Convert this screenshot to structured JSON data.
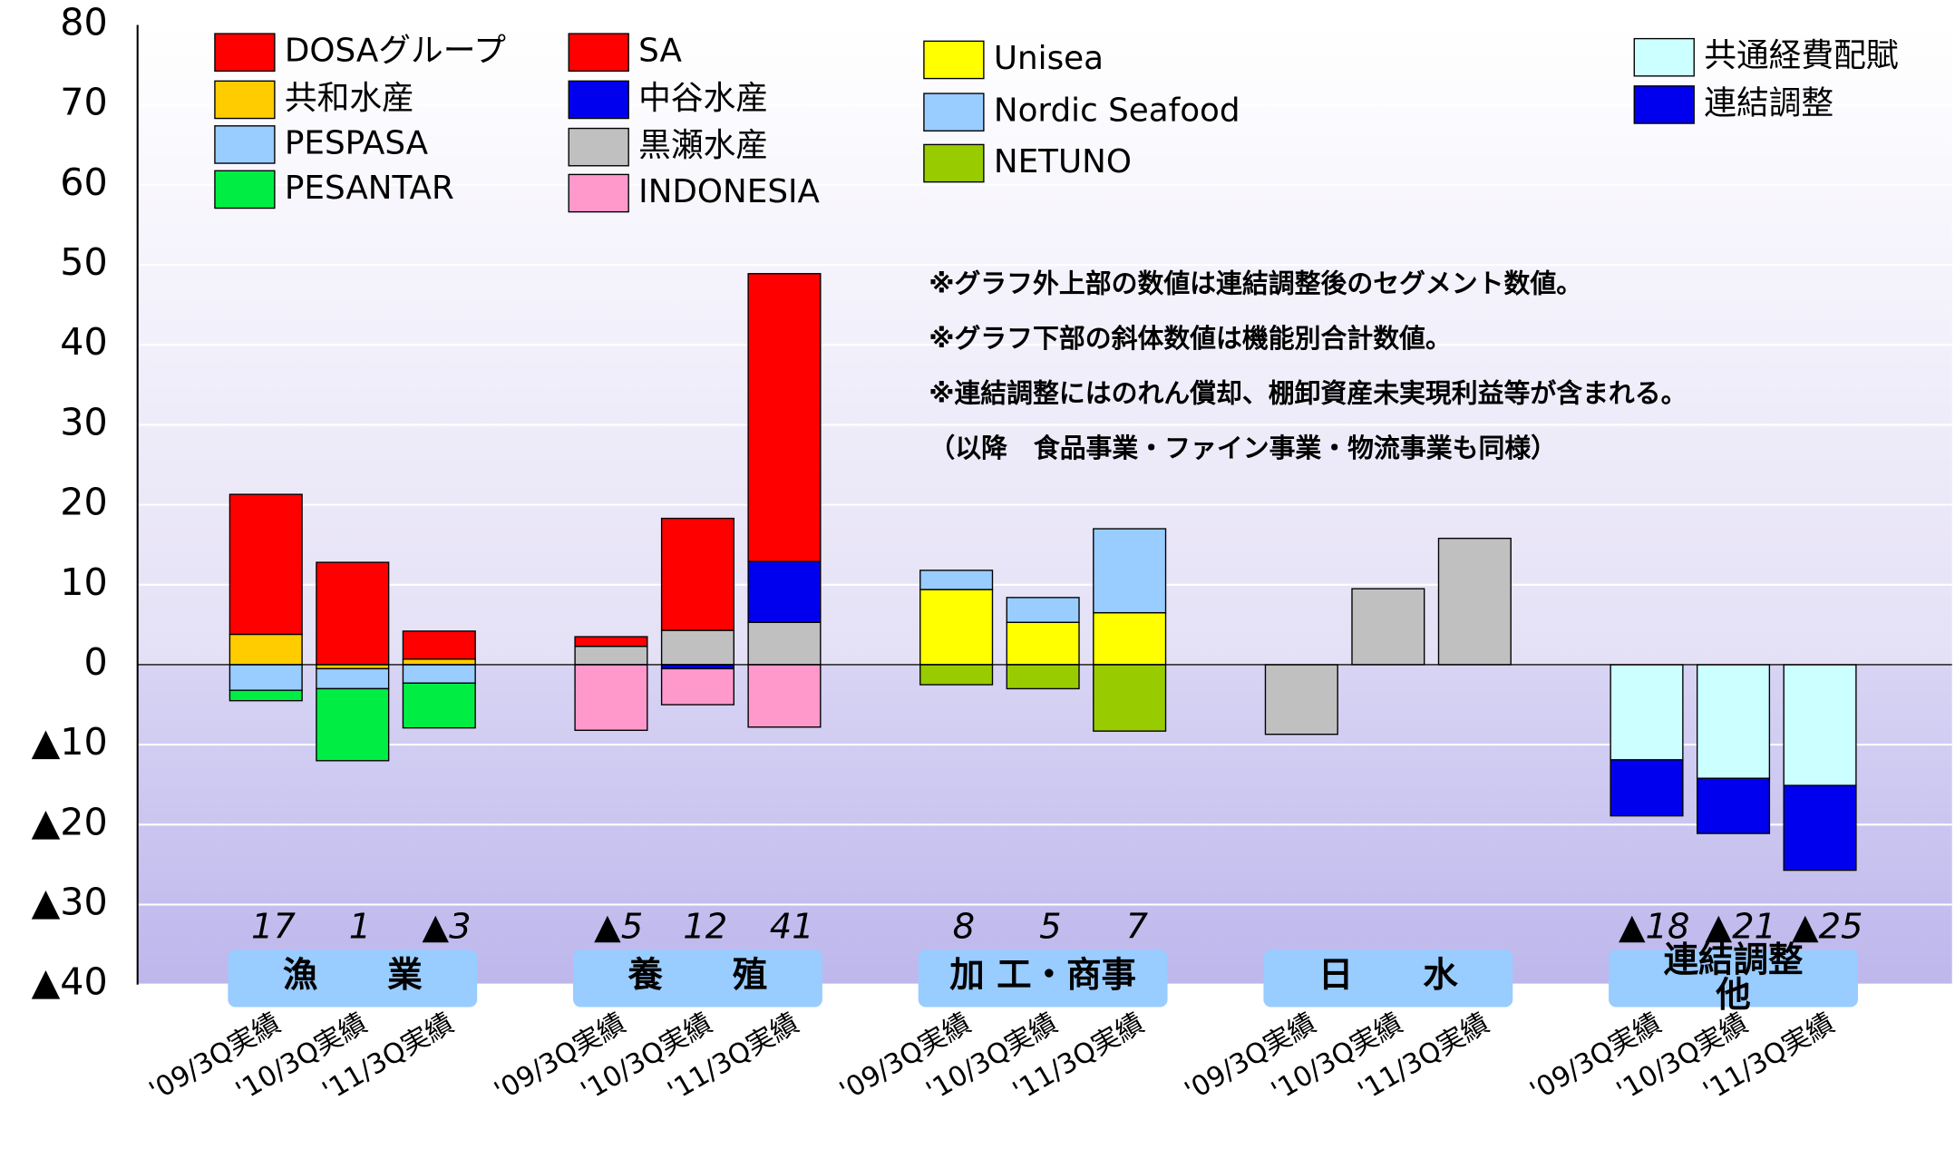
{
  "chart_data": {
    "type": "bar",
    "categories": [
      "'09/3Q実績",
      "'10/3Q実績",
      "'11/3Q実績",
      "'09/3Q実績",
      "'10/3Q実績",
      "'11/3Q実績",
      "'09/3Q実績",
      "'10/3Q実績",
      "'11/3Q実績",
      "'09/3Q実績",
      "'10/3Q実績",
      "'11/3Q実績",
      "'09/3Q実績",
      "'10/3Q実績",
      "'11/3Q実績"
    ],
    "groups": [
      [
        "漁　　業"
      ],
      [
        "養　　殖"
      ],
      [
        "加 工・商事"
      ],
      [
        "日　　水"
      ],
      [
        "連結調整",
        "他"
      ]
    ],
    "series": [
      {
        "name": "DOSAグループ",
        "color": "#ff0000",
        "values": [
          17.5,
          12.8,
          3.5,
          null,
          null,
          null,
          null,
          null,
          null,
          null,
          null,
          null,
          null,
          null,
          null
        ]
      },
      {
        "name": "共和水産",
        "color": "#ffcc00",
        "values": [
          3.8,
          -0.5,
          0.7,
          null,
          null,
          null,
          null,
          null,
          null,
          null,
          null,
          null,
          null,
          null,
          null
        ]
      },
      {
        "name": "PESPASA",
        "color": "#99ccff",
        "values": [
          -3.2,
          -2.5,
          -2.3,
          null,
          null,
          null,
          null,
          null,
          null,
          null,
          null,
          null,
          null,
          null,
          null
        ]
      },
      {
        "name": "PESANTAR",
        "color": "#00ee44",
        "values": [
          -1.3,
          -9,
          -5.6,
          null,
          null,
          null,
          null,
          null,
          null,
          null,
          null,
          null,
          null,
          null,
          null
        ]
      },
      {
        "name": "SA",
        "color": "#ff0000",
        "values": [
          null,
          null,
          null,
          1.2,
          14,
          36,
          null,
          null,
          null,
          null,
          null,
          null,
          null,
          null,
          null
        ]
      },
      {
        "name": "中谷水産",
        "color": "#0000ee",
        "values": [
          null,
          null,
          null,
          null,
          -0.5,
          7.6,
          null,
          null,
          null,
          null,
          null,
          null,
          null,
          null,
          null
        ]
      },
      {
        "name": "黒瀬水産",
        "color": "#c0c0c0",
        "values": [
          null,
          null,
          null,
          2.3,
          4.3,
          5.3,
          null,
          null,
          null,
          null,
          null,
          null,
          null,
          null,
          null
        ]
      },
      {
        "name": "INDONESIA",
        "color": "#ff99cc",
        "values": [
          null,
          null,
          null,
          -8.2,
          -4.5,
          -7.8,
          null,
          null,
          null,
          null,
          null,
          null,
          null,
          null,
          null
        ]
      },
      {
        "name": "Nordic Seafood",
        "color": "#99ccff",
        "values": [
          null,
          null,
          null,
          null,
          null,
          null,
          2.4,
          3.1,
          10.5,
          null,
          null,
          null,
          null,
          null,
          null
        ]
      },
      {
        "name": "Unisea",
        "color": "#ffff00",
        "values": [
          null,
          null,
          null,
          null,
          null,
          null,
          9.4,
          5.3,
          6.5,
          null,
          null,
          null,
          null,
          null,
          null
        ]
      },
      {
        "name": "NETUNO",
        "color": "#99cc00",
        "values": [
          null,
          null,
          null,
          null,
          null,
          null,
          -2.5,
          -3,
          -8.3,
          null,
          null,
          null,
          null,
          null,
          null
        ]
      },
      {
        "name": "共通経費配賦",
        "color": "#ccffff",
        "values": [
          null,
          null,
          null,
          null,
          null,
          null,
          null,
          null,
          null,
          null,
          null,
          null,
          -11.9,
          -14.2,
          -15.1
        ]
      },
      {
        "name": "連結調整",
        "color": "#0000ee",
        "values": [
          null,
          null,
          null,
          null,
          null,
          null,
          null,
          null,
          null,
          null,
          null,
          null,
          -7,
          -6.9,
          -10.6
        ]
      },
      {
        "name": null,
        "color": "#c0c0c0",
        "values": [
          null,
          null,
          null,
          null,
          null,
          null,
          null,
          null,
          null,
          -8.7,
          9.5,
          15.8,
          null,
          null,
          null
        ]
      }
    ],
    "totals": [
      17,
      1,
      {
        "value": -3,
        "label": "▲3"
      },
      {
        "value": -5,
        "label": "▲5"
      },
      12,
      41,
      8,
      5,
      7,
      null,
      null,
      null,
      {
        "value": -18,
        "label": "▲18"
      },
      {
        "value": -21,
        "label": "▲21"
      },
      {
        "value": -25,
        "label": "▲25"
      }
    ],
    "notes": [
      "※グラフ外上部の数値は連結調整後のセグメント数値。",
      "※グラフ下部の斜体数値は機能別合計数値。",
      "※連結調整にはのれん償却、棚卸資産未実現利益等が含まれる。",
      "（以降　食品事業・ファイン事業・物流事業も同様）"
    ],
    "ylim": [
      -40,
      80
    ],
    "yticks": [
      {
        "value": -40,
        "label": "▲40"
      },
      {
        "value": -30,
        "label": "▲30"
      },
      {
        "value": -20,
        "label": "▲20"
      },
      {
        "value": -10,
        "label": "▲10"
      },
      0,
      10,
      20,
      30,
      40,
      50,
      60,
      70,
      80
    ],
    "grid": true
  }
}
